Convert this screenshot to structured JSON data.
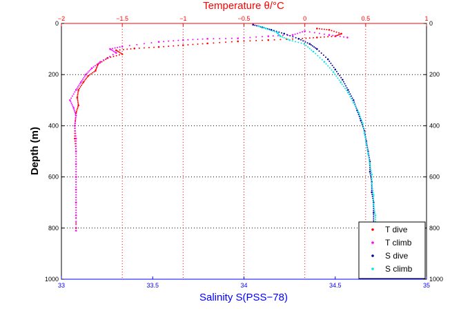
{
  "chart_data": {
    "type": "scatter",
    "title": "Temperature θ/°C",
    "xlabel": "Salinity S(PSS−78)",
    "ylabel": "Depth (m)",
    "top_axis": {
      "label": "Temperature θ/°C",
      "lim": [
        -2,
        1
      ],
      "ticks": [
        -2,
        -1.5,
        -1,
        -0.5,
        0,
        0.5,
        1
      ],
      "tick_labels": [
        "−2",
        "−1.5",
        "−1",
        "−0.5",
        "0",
        "0.5",
        "1"
      ],
      "color": "#ff0000"
    },
    "bottom_axis": {
      "label": "Salinity S(PSS−78)",
      "lim": [
        33,
        35
      ],
      "ticks": [
        33,
        33.5,
        34,
        34.5,
        35
      ],
      "tick_labels": [
        "33",
        "33.5",
        "34",
        "34.5",
        "35"
      ],
      "color": "#0000ff"
    },
    "y_axis": {
      "lim": [
        0,
        1000
      ],
      "reversed": true,
      "ticks": [
        0,
        200,
        400,
        600,
        800,
        1000
      ],
      "tick_labels": [
        "0",
        "200",
        "400",
        "600",
        "800",
        "1000"
      ],
      "mirrored_right": true
    },
    "grid": true,
    "legend_position": "bottom-right",
    "series": [
      {
        "name": "T dive",
        "axis": "temperature",
        "color": "#ff0000",
        "points": [
          [
            0.1,
            20
          ],
          [
            0.2,
            25
          ],
          [
            0.3,
            40
          ],
          [
            0.25,
            50
          ],
          [
            0.1,
            55
          ],
          [
            -0.05,
            60
          ],
          [
            -0.3,
            65
          ],
          [
            -0.55,
            70
          ],
          [
            -0.8,
            78
          ],
          [
            -1.0,
            85
          ],
          [
            -1.2,
            92
          ],
          [
            -1.4,
            98
          ],
          [
            -1.55,
            105
          ],
          [
            -1.5,
            120
          ],
          [
            -1.62,
            135
          ],
          [
            -1.7,
            160
          ],
          [
            -1.72,
            185
          ],
          [
            -1.78,
            205
          ],
          [
            -1.82,
            230
          ],
          [
            -1.86,
            260
          ],
          [
            -1.87,
            290
          ],
          [
            -1.86,
            320
          ],
          [
            -1.88,
            350
          ],
          [
            -1.89,
            400
          ],
          [
            -1.89,
            450
          ],
          [
            -1.88,
            500
          ],
          [
            -1.88,
            600
          ],
          [
            -1.88,
            700
          ],
          [
            -1.88,
            800
          ]
        ]
      },
      {
        "name": "T climb",
        "axis": "temperature",
        "color": "#ff00ff",
        "points": [
          [
            0.35,
            55
          ],
          [
            0.2,
            45
          ],
          [
            0.0,
            30
          ],
          [
            -0.1,
            45
          ],
          [
            -0.3,
            50
          ],
          [
            -0.55,
            58
          ],
          [
            -0.8,
            60
          ],
          [
            -1.0,
            65
          ],
          [
            -1.2,
            72
          ],
          [
            -1.5,
            90
          ],
          [
            -1.6,
            100
          ],
          [
            -1.55,
            115
          ],
          [
            -1.68,
            150
          ],
          [
            -1.75,
            175
          ],
          [
            -1.8,
            200
          ],
          [
            -1.84,
            230
          ],
          [
            -1.88,
            260
          ],
          [
            -1.93,
            300
          ],
          [
            -1.9,
            330
          ],
          [
            -1.88,
            360
          ],
          [
            -1.89,
            400
          ],
          [
            -1.88,
            450
          ],
          [
            -1.88,
            500
          ],
          [
            -1.88,
            550
          ],
          [
            -1.88,
            600
          ],
          [
            -1.88,
            650
          ],
          [
            -1.88,
            700
          ],
          [
            -1.88,
            750
          ],
          [
            -1.88,
            810
          ]
        ]
      },
      {
        "name": "S dive",
        "axis": "salinity",
        "color": "#0000a0",
        "points": [
          [
            34.05,
            5
          ],
          [
            34.1,
            15
          ],
          [
            34.15,
            25
          ],
          [
            34.22,
            40
          ],
          [
            34.3,
            60
          ],
          [
            34.36,
            80
          ],
          [
            34.4,
            100
          ],
          [
            34.46,
            140
          ],
          [
            34.5,
            180
          ],
          [
            34.54,
            220
          ],
          [
            34.57,
            260
          ],
          [
            34.6,
            300
          ],
          [
            34.62,
            340
          ],
          [
            34.64,
            380
          ],
          [
            34.66,
            420
          ],
          [
            34.67,
            460
          ],
          [
            34.68,
            500
          ],
          [
            34.69,
            540
          ],
          [
            34.69,
            580
          ],
          [
            34.7,
            620
          ],
          [
            34.7,
            660
          ],
          [
            34.71,
            700
          ],
          [
            34.71,
            740
          ],
          [
            34.71,
            780
          ]
        ]
      },
      {
        "name": "S climb",
        "axis": "salinity",
        "color": "#00e5e5",
        "points": [
          [
            34.08,
            10
          ],
          [
            34.12,
            20
          ],
          [
            34.18,
            35
          ],
          [
            34.2,
            50
          ],
          [
            34.25,
            65
          ],
          [
            34.33,
            80
          ],
          [
            34.38,
            110
          ],
          [
            34.44,
            150
          ],
          [
            34.49,
            190
          ],
          [
            34.53,
            230
          ],
          [
            34.57,
            270
          ],
          [
            34.6,
            310
          ],
          [
            34.63,
            350
          ],
          [
            34.65,
            390
          ],
          [
            34.66,
            430
          ],
          [
            34.67,
            470
          ],
          [
            34.68,
            510
          ],
          [
            34.69,
            550
          ],
          [
            34.7,
            590
          ],
          [
            34.7,
            630
          ],
          [
            34.71,
            670
          ],
          [
            34.71,
            710
          ],
          [
            34.72,
            750
          ],
          [
            34.72,
            790
          ]
        ]
      }
    ]
  }
}
